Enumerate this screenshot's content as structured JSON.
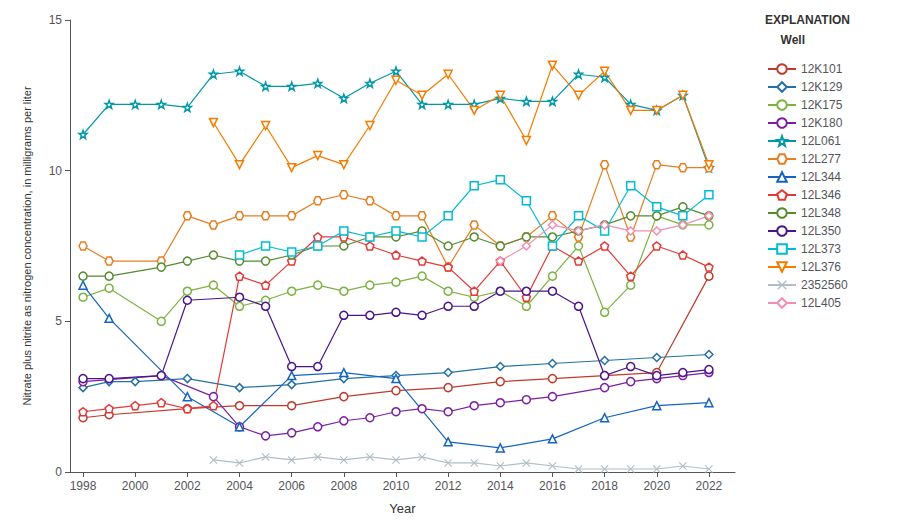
{
  "chart_data": {
    "type": "line",
    "xlabel": "Year",
    "ylabel": "Nitrate plus nitrite as nitrogen concentration, in milligrams per liter",
    "annotations": [
      "EXPLANATION",
      "Well"
    ],
    "xlim": [
      1997.5,
      2023.0
    ],
    "ylim": [
      0,
      15
    ],
    "xticks": [
      1998,
      2000,
      2002,
      2004,
      2006,
      2008,
      2010,
      2012,
      2014,
      2016,
      2018,
      2020,
      2022
    ],
    "yticks": [
      0,
      5,
      10,
      15
    ],
    "grid": false,
    "legend": "right",
    "series": [
      {
        "name": "12K101",
        "color": "#c0392b",
        "marker": "circle",
        "x": [
          1998,
          1999,
          2002,
          2004,
          2006,
          2008,
          2010,
          2012,
          2014,
          2016,
          2018,
          2020,
          2022
        ],
        "values": [
          1.8,
          1.9,
          2.1,
          2.2,
          2.2,
          2.5,
          2.7,
          2.8,
          3.0,
          3.1,
          3.2,
          3.3,
          6.5
        ]
      },
      {
        "name": "12K129",
        "color": "#2471a3",
        "marker": "thin_diamond",
        "x": [
          1998,
          1999,
          2000,
          2002,
          2004,
          2006,
          2008,
          2010,
          2012,
          2014,
          2016,
          2018,
          2020,
          2022
        ],
        "values": [
          2.8,
          3.0,
          3.0,
          3.1,
          2.8,
          2.9,
          3.1,
          3.2,
          3.3,
          3.5,
          3.6,
          3.7,
          3.8,
          3.9
        ]
      },
      {
        "name": "12K175",
        "color": "#7cb342",
        "marker": "circle",
        "x": [
          1998,
          1999,
          2001,
          2002,
          2003,
          2004,
          2005,
          2006,
          2007,
          2008,
          2009,
          2010,
          2011,
          2012,
          2013,
          2014,
          2015,
          2016,
          2017,
          2018,
          2019,
          2020,
          2021,
          2022
        ],
        "values": [
          5.8,
          6.1,
          5.0,
          6.0,
          6.2,
          5.5,
          5.7,
          6.0,
          6.2,
          6.0,
          6.2,
          6.3,
          6.5,
          6.0,
          5.8,
          6.0,
          5.5,
          6.5,
          7.5,
          5.3,
          6.2,
          8.5,
          8.2,
          8.2
        ]
      },
      {
        "name": "12K180",
        "color": "#7b1fa2",
        "marker": "circle",
        "x": [
          1998,
          2001,
          2003,
          2004,
          2005,
          2006,
          2007,
          2008,
          2009,
          2010,
          2011,
          2012,
          2013,
          2014,
          2015,
          2016,
          2018,
          2019,
          2020,
          2021,
          2022
        ],
        "values": [
          3.0,
          3.2,
          2.5,
          1.5,
          1.2,
          1.3,
          1.5,
          1.7,
          1.8,
          2.0,
          2.1,
          2.0,
          2.2,
          2.3,
          2.4,
          2.5,
          2.8,
          3.0,
          3.1,
          3.2,
          3.3
        ]
      },
      {
        "name": "12L061",
        "color": "#0097a7",
        "marker": "star",
        "x": [
          1998,
          1999,
          2000,
          2001,
          2002,
          2003,
          2004,
          2005,
          2006,
          2007,
          2008,
          2009,
          2010,
          2011,
          2012,
          2013,
          2014,
          2015,
          2016,
          2017,
          2018,
          2019,
          2020,
          2021,
          2022
        ],
        "values": [
          11.2,
          12.2,
          12.2,
          12.2,
          12.1,
          13.2,
          13.3,
          12.8,
          12.8,
          12.9,
          12.4,
          12.9,
          13.3,
          12.2,
          12.2,
          12.2,
          12.4,
          12.3,
          12.3,
          13.2,
          13.1,
          12.2,
          12.0,
          12.5,
          10.1
        ]
      },
      {
        "name": "12L277",
        "color": "#e67e22",
        "marker": "hexagon",
        "x": [
          1998,
          1999,
          2001,
          2002,
          2003,
          2004,
          2005,
          2006,
          2007,
          2008,
          2009,
          2010,
          2011,
          2012,
          2013,
          2014,
          2015,
          2016,
          2017,
          2018,
          2019,
          2020,
          2021,
          2022
        ],
        "values": [
          7.5,
          7.0,
          7.0,
          8.5,
          8.2,
          8.5,
          8.5,
          8.5,
          9.0,
          9.2,
          9.0,
          8.5,
          8.5,
          6.8,
          8.2,
          7.5,
          7.8,
          8.5,
          7.8,
          10.2,
          7.8,
          10.2,
          10.1,
          10.1
        ]
      },
      {
        "name": "12L344",
        "color": "#1565c0",
        "marker": "triangle",
        "x": [
          1998,
          1999,
          2002,
          2004,
          2006,
          2008,
          2010,
          2012,
          2014,
          2016,
          2018,
          2020,
          2022
        ],
        "values": [
          6.2,
          5.1,
          2.5,
          1.5,
          3.2,
          3.3,
          3.1,
          1.0,
          0.8,
          1.1,
          1.8,
          2.2,
          2.3
        ]
      },
      {
        "name": "12L346",
        "color": "#e53935",
        "marker": "pentagon",
        "x": [
          1998,
          1999,
          2000,
          2001,
          2002,
          2003,
          2004,
          2005,
          2006,
          2007,
          2008,
          2009,
          2010,
          2011,
          2012,
          2013,
          2014,
          2015,
          2016,
          2017,
          2018,
          2019,
          2020,
          2021,
          2022
        ],
        "values": [
          2.0,
          2.1,
          2.2,
          2.3,
          2.1,
          2.2,
          6.5,
          6.2,
          7.0,
          7.8,
          7.8,
          7.5,
          7.2,
          7.0,
          6.8,
          6.0,
          7.0,
          5.8,
          7.5,
          7.0,
          7.5,
          6.5,
          7.5,
          7.2,
          6.8
        ]
      },
      {
        "name": "12L348",
        "color": "#558b2f",
        "marker": "circle",
        "x": [
          1998,
          1999,
          2001,
          2002,
          2003,
          2004,
          2005,
          2006,
          2007,
          2008,
          2009,
          2010,
          2011,
          2012,
          2013,
          2014,
          2015,
          2016,
          2017,
          2018,
          2019,
          2020,
          2021,
          2022
        ],
        "values": [
          6.5,
          6.5,
          6.8,
          7.0,
          7.2,
          7.0,
          7.0,
          7.2,
          7.5,
          7.5,
          7.8,
          7.8,
          8.0,
          7.5,
          7.8,
          7.5,
          7.8,
          7.8,
          8.0,
          8.2,
          8.5,
          8.5,
          8.8,
          8.5
        ]
      },
      {
        "name": "12L350",
        "color": "#4a148c",
        "marker": "circle",
        "x": [
          1998,
          1999,
          2001,
          2002,
          2004,
          2005,
          2006,
          2007,
          2008,
          2009,
          2010,
          2011,
          2012,
          2013,
          2014,
          2015,
          2016,
          2017,
          2018,
          2019,
          2020,
          2021,
          2022
        ],
        "values": [
          3.1,
          3.1,
          3.2,
          5.7,
          5.8,
          5.5,
          3.5,
          3.5,
          5.2,
          5.2,
          5.3,
          5.2,
          5.5,
          5.5,
          6.0,
          6.0,
          6.0,
          5.5,
          3.2,
          3.5,
          3.2,
          3.3,
          3.4
        ]
      },
      {
        "name": "12L373",
        "color": "#00bcd4",
        "marker": "square",
        "x": [
          2004,
          2005,
          2006,
          2007,
          2008,
          2009,
          2010,
          2011,
          2012,
          2013,
          2014,
          2015,
          2016,
          2017,
          2018,
          2019,
          2020,
          2021,
          2022
        ],
        "values": [
          7.2,
          7.5,
          7.3,
          7.5,
          8.0,
          7.8,
          8.0,
          7.8,
          8.5,
          9.5,
          9.7,
          9.0,
          7.5,
          8.5,
          8.0,
          9.5,
          8.8,
          8.5,
          9.2
        ]
      },
      {
        "name": "12L376",
        "color": "#f57c00",
        "marker": "triangle_down",
        "x": [
          2003,
          2004,
          2005,
          2006,
          2007,
          2008,
          2009,
          2010,
          2011,
          2012,
          2013,
          2014,
          2015,
          2016,
          2017,
          2018,
          2019,
          2020,
          2021,
          2022
        ],
        "values": [
          11.6,
          10.2,
          11.5,
          10.1,
          10.5,
          10.2,
          11.5,
          13.0,
          12.5,
          13.2,
          12.0,
          12.5,
          11.0,
          13.5,
          12.5,
          13.3,
          12.0,
          12.0,
          12.5,
          10.2
        ]
      },
      {
        "name": "2352560",
        "color": "#b0bec5",
        "marker": "x",
        "x": [
          2003,
          2004,
          2005,
          2006,
          2007,
          2008,
          2009,
          2010,
          2011,
          2012,
          2013,
          2014,
          2015,
          2016,
          2017,
          2018,
          2019,
          2020,
          2021,
          2022
        ],
        "values": [
          0.4,
          0.3,
          0.5,
          0.4,
          0.5,
          0.4,
          0.5,
          0.4,
          0.5,
          0.3,
          0.3,
          0.2,
          0.3,
          0.2,
          0.1,
          0.1,
          0.1,
          0.1,
          0.2,
          0.1
        ]
      },
      {
        "name": "12L405",
        "color": "#f48fb1",
        "marker": "diamond",
        "x": [
          2014,
          2015,
          2016,
          2017,
          2018,
          2019,
          2020,
          2021,
          2022
        ],
        "values": [
          7.0,
          7.5,
          8.2,
          8.0,
          8.2,
          8.0,
          8.0,
          8.2,
          8.5
        ]
      }
    ]
  }
}
